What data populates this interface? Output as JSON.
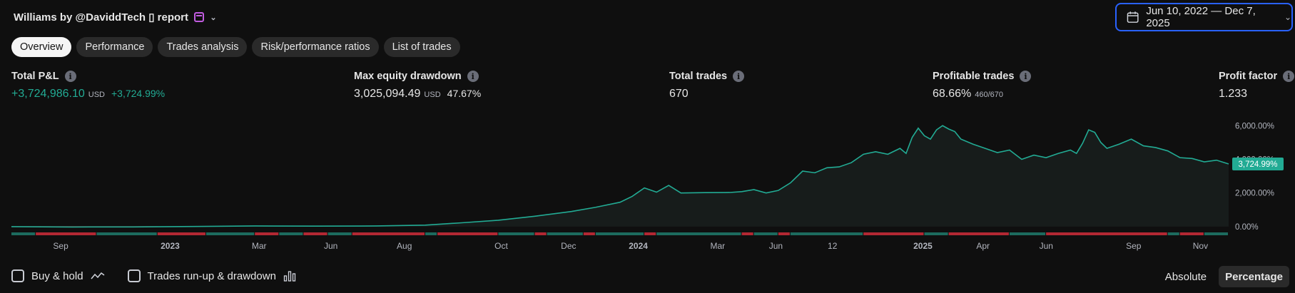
{
  "header": {
    "title": "Williams by @DaviddTech ▯ report",
    "calendar_icon": "calendar-icon",
    "chevron_icon": "chevron-down-icon"
  },
  "date_range": {
    "label": "Jun 10, 2022 — Dec 7, 2025",
    "icon": "calendar-icon"
  },
  "tabs": [
    {
      "label": "Overview",
      "active": true
    },
    {
      "label": "Performance",
      "active": false
    },
    {
      "label": "Trades analysis",
      "active": false
    },
    {
      "label": "Risk/performance ratios",
      "active": false
    },
    {
      "label": "List of trades",
      "active": false
    }
  ],
  "metrics": {
    "total_pnl": {
      "label": "Total P&L",
      "value": "+3,724,986.10",
      "unit": "USD",
      "pct": "+3,724.99%"
    },
    "max_dd": {
      "label": "Max equity drawdown",
      "value": "3,025,094.49",
      "unit": "USD",
      "pct": "47.67%"
    },
    "total_trades": {
      "label": "Total trades",
      "value": "670"
    },
    "profitable": {
      "label": "Profitable trades",
      "value": "68.66%",
      "ratio": "460/670"
    },
    "profit_factor": {
      "label": "Profit factor",
      "value": "1.233"
    }
  },
  "chart_data": {
    "type": "area",
    "title": "",
    "ylabel": "",
    "xlabel": "",
    "y_ticks": [
      "0.00%",
      "2,000.00%",
      "4,000.00%",
      "6,000.00%"
    ],
    "y_tick_values": [
      0,
      2000,
      4000,
      6000
    ],
    "ylim": [
      -300,
      6900
    ],
    "xlim": [
      0,
      1
    ],
    "x_ticks": [
      {
        "label": "Sep",
        "t": 0.0405,
        "bold": false
      },
      {
        "label": "2023",
        "t": 0.1304,
        "bold": true
      },
      {
        "label": "Mar",
        "t": 0.2035,
        "bold": false
      },
      {
        "label": "Jun",
        "t": 0.2624,
        "bold": false
      },
      {
        "label": "Aug",
        "t": 0.3228,
        "bold": false
      },
      {
        "label": "Oct",
        "t": 0.4024,
        "bold": false
      },
      {
        "label": "Dec",
        "t": 0.4577,
        "bold": false
      },
      {
        "label": "2024",
        "t": 0.515,
        "bold": true
      },
      {
        "label": "Mar",
        "t": 0.5802,
        "bold": false
      },
      {
        "label": "Jun",
        "t": 0.628,
        "bold": false
      },
      {
        "label": "12",
        "t": 0.6745,
        "bold": false
      },
      {
        "label": "2025",
        "t": 0.7488,
        "bold": true
      },
      {
        "label": "Apr",
        "t": 0.7982,
        "bold": false
      },
      {
        "label": "Jun",
        "t": 0.8501,
        "bold": false
      },
      {
        "label": "Sep",
        "t": 0.9219,
        "bold": false
      },
      {
        "label": "Nov",
        "t": 0.9768,
        "bold": false
      }
    ],
    "series": [
      {
        "points": [
          [
            0.0,
            0
          ],
          [
            0.05,
            -20
          ],
          [
            0.1,
            -15
          ],
          [
            0.15,
            10
          ],
          [
            0.2,
            40
          ],
          [
            0.25,
            30
          ],
          [
            0.3,
            40
          ],
          [
            0.34,
            90
          ],
          [
            0.37,
            230
          ],
          [
            0.4,
            380
          ],
          [
            0.43,
            620
          ],
          [
            0.46,
            900
          ],
          [
            0.48,
            1150
          ],
          [
            0.5,
            1450
          ],
          [
            0.51,
            1800
          ],
          [
            0.52,
            2300
          ],
          [
            0.53,
            2050
          ],
          [
            0.54,
            2450
          ],
          [
            0.55,
            2000
          ],
          [
            0.57,
            2020
          ],
          [
            0.59,
            2030
          ],
          [
            0.6,
            2080
          ],
          [
            0.61,
            2200
          ],
          [
            0.62,
            2000
          ],
          [
            0.63,
            2150
          ],
          [
            0.64,
            2600
          ],
          [
            0.65,
            3300
          ],
          [
            0.66,
            3200
          ],
          [
            0.67,
            3500
          ],
          [
            0.68,
            3550
          ],
          [
            0.69,
            3800
          ],
          [
            0.7,
            4300
          ],
          [
            0.71,
            4450
          ],
          [
            0.72,
            4300
          ],
          [
            0.73,
            4650
          ],
          [
            0.735,
            4350
          ],
          [
            0.74,
            5300
          ],
          [
            0.745,
            5850
          ],
          [
            0.75,
            5400
          ],
          [
            0.755,
            5200
          ],
          [
            0.76,
            5750
          ],
          [
            0.765,
            6000
          ],
          [
            0.77,
            5800
          ],
          [
            0.775,
            5650
          ],
          [
            0.78,
            5200
          ],
          [
            0.79,
            4900
          ],
          [
            0.8,
            4650
          ],
          [
            0.81,
            4400
          ],
          [
            0.82,
            4550
          ],
          [
            0.83,
            4000
          ],
          [
            0.84,
            4250
          ],
          [
            0.85,
            4100
          ],
          [
            0.86,
            4350
          ],
          [
            0.87,
            4550
          ],
          [
            0.875,
            4350
          ],
          [
            0.88,
            4950
          ],
          [
            0.885,
            5750
          ],
          [
            0.89,
            5600
          ],
          [
            0.895,
            5000
          ],
          [
            0.9,
            4650
          ],
          [
            0.91,
            4900
          ],
          [
            0.92,
            5200
          ],
          [
            0.93,
            4800
          ],
          [
            0.94,
            4700
          ],
          [
            0.95,
            4500
          ],
          [
            0.96,
            4100
          ],
          [
            0.97,
            4050
          ],
          [
            0.98,
            3850
          ],
          [
            0.99,
            3950
          ],
          [
            1.0,
            3725
          ]
        ]
      }
    ],
    "last_value_label": "3,724.99%",
    "line_color": "#22ab94",
    "negative_early_color": "#f23645",
    "grid": false,
    "trade_strip": {
      "segments": [
        [
          0.0,
          0.02,
          "green"
        ],
        [
          0.02,
          0.07,
          "red"
        ],
        [
          0.07,
          0.12,
          "green"
        ],
        [
          0.12,
          0.16,
          "red"
        ],
        [
          0.16,
          0.2,
          "green"
        ],
        [
          0.2,
          0.22,
          "red"
        ],
        [
          0.22,
          0.24,
          "green"
        ],
        [
          0.24,
          0.26,
          "red"
        ],
        [
          0.26,
          0.28,
          "green"
        ],
        [
          0.28,
          0.34,
          "red"
        ],
        [
          0.34,
          0.35,
          "green"
        ],
        [
          0.35,
          0.4,
          "red"
        ],
        [
          0.4,
          0.43,
          "green"
        ],
        [
          0.43,
          0.44,
          "red"
        ],
        [
          0.44,
          0.47,
          "green"
        ],
        [
          0.47,
          0.48,
          "red"
        ],
        [
          0.48,
          0.52,
          "green"
        ],
        [
          0.52,
          0.53,
          "red"
        ],
        [
          0.53,
          0.6,
          "green"
        ],
        [
          0.6,
          0.61,
          "red"
        ],
        [
          0.61,
          0.63,
          "green"
        ],
        [
          0.63,
          0.64,
          "red"
        ],
        [
          0.64,
          0.7,
          "green"
        ],
        [
          0.7,
          0.75,
          "red"
        ],
        [
          0.75,
          0.77,
          "green"
        ],
        [
          0.77,
          0.82,
          "red"
        ],
        [
          0.82,
          0.85,
          "green"
        ],
        [
          0.85,
          0.95,
          "red"
        ],
        [
          0.95,
          0.96,
          "green"
        ],
        [
          0.96,
          0.98,
          "red"
        ],
        [
          0.98,
          1.0,
          "green"
        ]
      ]
    }
  },
  "footer": {
    "buy_hold": {
      "label": "Buy & hold",
      "icon": "line-chart-icon"
    },
    "runup": {
      "label": "Trades run-up & drawdown",
      "icon": "bar-chart-icon"
    },
    "absolute": "Absolute",
    "percentage": "Percentage"
  }
}
